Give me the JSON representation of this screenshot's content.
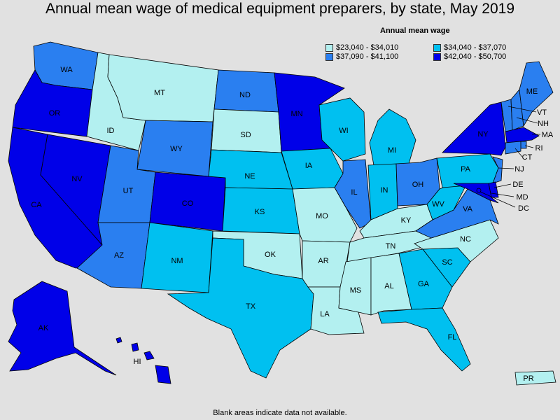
{
  "title": "Annual mean wage of medical equipment preparers, by state, May 2019",
  "legend": {
    "title": "Annual mean wage",
    "bins": [
      {
        "label": "$23,040 - $34,010",
        "color": "#b3f0f0"
      },
      {
        "label": "$34,040 - $37,070",
        "color": "#00c0f0"
      },
      {
        "label": "$37,090 - $41,100",
        "color": "#2a7ff0"
      },
      {
        "label": "$42,040 - $50,700",
        "color": "#0000e8"
      }
    ]
  },
  "footnote": "Blank areas indicate data not available.",
  "states": {
    "WA": "c",
    "OR": "d",
    "CA": "d",
    "NV": "d",
    "ID": "a",
    "MT": "a",
    "WY": "c",
    "UT": "c",
    "AZ": "c",
    "CO": "d",
    "NM": "b",
    "ND": "c",
    "SD": "a",
    "NE": "b",
    "KS": "b",
    "OK": "a",
    "TX": "b",
    "MN": "d",
    "IA": "b",
    "MO": "a",
    "AR": "a",
    "LA": "a",
    "WI": "b",
    "IL": "c",
    "MS": "a",
    "MI": "b",
    "IN": "b",
    "KY": "a",
    "TN": "a",
    "AL": "a",
    "OH": "c",
    "GA": "b",
    "FL": "b",
    "SC": "b",
    "NC": "a",
    "VA": "c",
    "WV": "b",
    "PA": "b",
    "NY": "d",
    "ME": "c",
    "NH": "c",
    "VT": "c",
    "MA": "d",
    "RI": "c",
    "CT": "c",
    "NJ": "c",
    "DE": "d",
    "MD": "d",
    "DC": "d",
    "AK": "d",
    "HI": "d",
    "PR": "a"
  },
  "labels": [
    "WA",
    "OR",
    "CA",
    "NV",
    "ID",
    "MT",
    "WY",
    "UT",
    "AZ",
    "CO",
    "NM",
    "ND",
    "SD",
    "NE",
    "KS",
    "OK",
    "TX",
    "MN",
    "IA",
    "MO",
    "AR",
    "LA",
    "WI",
    "IL",
    "MS",
    "MI",
    "IN",
    "KY",
    "TN",
    "AL",
    "OH",
    "GA",
    "FL",
    "SC",
    "NC",
    "VA",
    "WV",
    "PA",
    "NY",
    "ME",
    "VT",
    "NH",
    "MA",
    "RI",
    "CT",
    "NJ",
    "DE",
    "MD",
    "DC",
    "AK",
    "HI",
    "PR"
  ]
}
